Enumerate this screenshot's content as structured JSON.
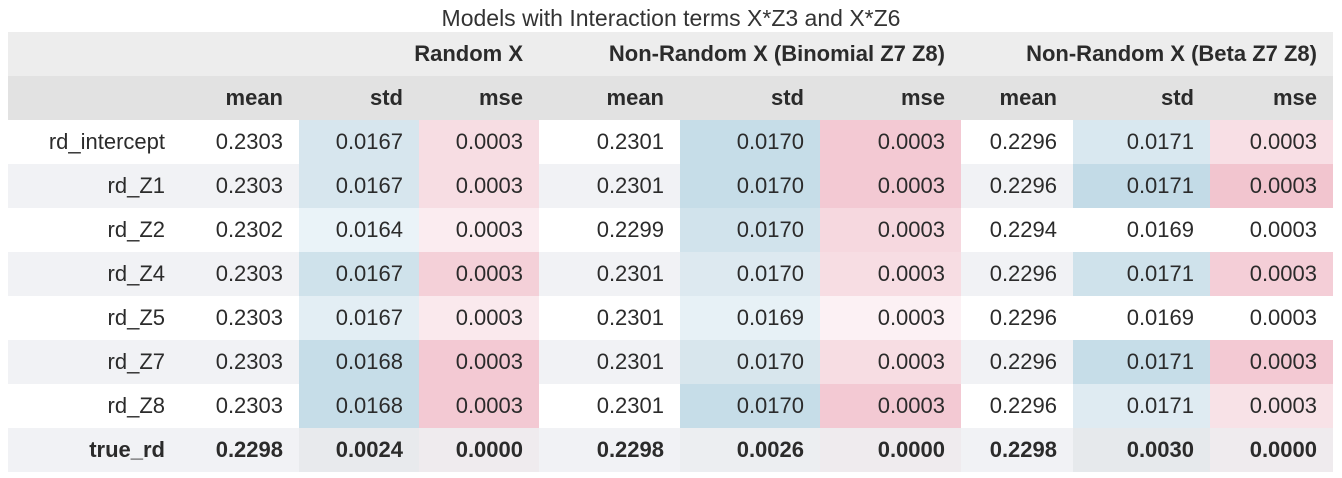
{
  "caption": "Models with Interaction terms X*Z3 and X*Z6",
  "groups": [
    "Random X",
    "Non-Random X (Binomial Z7 Z8)",
    "Non-Random X (Beta Z7 Z8)"
  ],
  "subheaders": [
    "mean",
    "std",
    "mse",
    "mean",
    "std",
    "mse",
    "mean",
    "std",
    "mse"
  ],
  "rows": [
    {
      "label": "rd_intercept",
      "values": [
        "0.2303",
        "0.0167",
        "0.0003",
        "0.2301",
        "0.0170",
        "0.0003",
        "0.2296",
        "0.0171",
        "0.0003"
      ]
    },
    {
      "label": "rd_Z1",
      "values": [
        "0.2303",
        "0.0167",
        "0.0003",
        "0.2301",
        "0.0170",
        "0.0003",
        "0.2296",
        "0.0171",
        "0.0003"
      ]
    },
    {
      "label": "rd_Z2",
      "values": [
        "0.2302",
        "0.0164",
        "0.0003",
        "0.2299",
        "0.0170",
        "0.0003",
        "0.2294",
        "0.0169",
        "0.0003"
      ]
    },
    {
      "label": "rd_Z4",
      "values": [
        "0.2303",
        "0.0167",
        "0.0003",
        "0.2301",
        "0.0170",
        "0.0003",
        "0.2296",
        "0.0171",
        "0.0003"
      ]
    },
    {
      "label": "rd_Z5",
      "values": [
        "0.2303",
        "0.0167",
        "0.0003",
        "0.2301",
        "0.0169",
        "0.0003",
        "0.2296",
        "0.0169",
        "0.0003"
      ]
    },
    {
      "label": "rd_Z7",
      "values": [
        "0.2303",
        "0.0168",
        "0.0003",
        "0.2301",
        "0.0170",
        "0.0003",
        "0.2296",
        "0.0171",
        "0.0003"
      ]
    },
    {
      "label": "rd_Z8",
      "values": [
        "0.2303",
        "0.0168",
        "0.0003",
        "0.2301",
        "0.0170",
        "0.0003",
        "0.2296",
        "0.0171",
        "0.0003"
      ]
    },
    {
      "label": "true_rd",
      "values": [
        "0.2298",
        "0.0024",
        "0.0000",
        "0.2298",
        "0.0026",
        "0.0000",
        "0.2298",
        "0.0030",
        "0.0000"
      ]
    }
  ],
  "cell_colors": [
    [
      null,
      "#d7e6ee",
      "#f7dde3",
      null,
      "#c6dde8",
      "#f3c9d3",
      null,
      "#d9e8f0",
      "#f8dfe5"
    ],
    [
      null,
      "#d7e6ee",
      "#f7dde3",
      null,
      "#c6dde8",
      "#f3c9d3",
      null,
      "#c3dbe7",
      "#f2c5cf"
    ],
    [
      null,
      "#eaf3f8",
      "#fbecf0",
      null,
      "#d1e3ec",
      "#f6d8df",
      null,
      "#ffffff",
      "#ffffff"
    ],
    [
      null,
      "#cfe2eb",
      "#f4d0d8",
      null,
      "#dde9f0",
      "#f7dde3",
      null,
      "#cfe2eb",
      "#f4ced7"
    ],
    [
      null,
      "#e3eef4",
      "#fae9ed",
      null,
      "#e7f1f6",
      "#fcf1f4",
      null,
      "#ffffff",
      "#ffffff"
    ],
    [
      null,
      "#c6dde8",
      "#f3c9d3",
      null,
      "#d8e6ed",
      "#f7dde3",
      null,
      "#c6dde8",
      "#f3c9d3"
    ],
    [
      null,
      "#c6dde8",
      "#f3c9d3",
      null,
      "#c6dde8",
      "#f3c9d3",
      null,
      "#dfebf2",
      "#f8e2e7"
    ],
    [
      null,
      "#e8eaed",
      "#efebee",
      null,
      "#eceef1",
      "#efebee",
      null,
      "#e6e9ec",
      "#efebee"
    ]
  ]
}
